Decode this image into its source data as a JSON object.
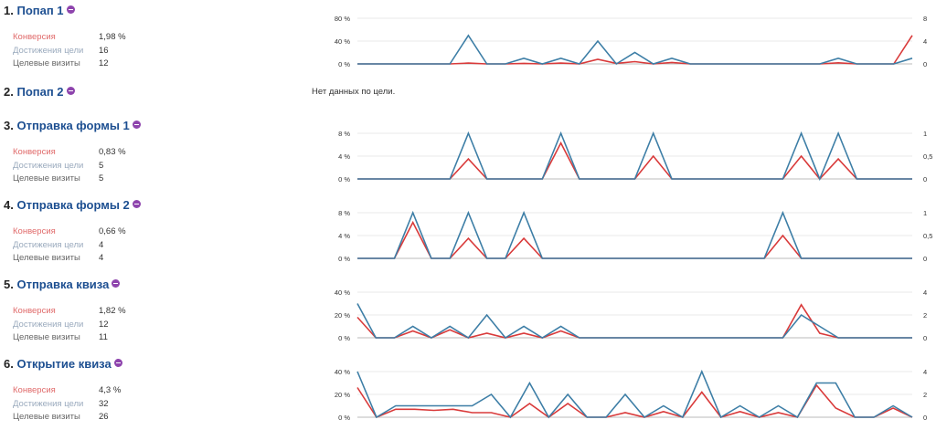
{
  "goals": [
    {
      "num": "1.",
      "name": "Попап 1",
      "badge_icon": "metrika-goal-icon",
      "stats": [
        {
          "label": "Конверсия",
          "value": "1,98 %"
        },
        {
          "label": "Достижения цели",
          "value": "16"
        },
        {
          "label": "Целевые визиты",
          "value": "12"
        }
      ],
      "nodata": null,
      "chart": {
        "left_ticks": [
          "80 %",
          "40 %",
          "0 %"
        ],
        "right_ticks": [
          "8",
          "4",
          "0"
        ],
        "conversion": [
          0,
          0,
          0,
          0,
          0,
          0,
          1.5,
          0,
          0,
          1,
          0,
          1.5,
          0,
          8,
          1,
          4,
          0,
          2.5,
          0,
          0,
          0,
          0,
          0,
          0,
          0,
          0,
          2,
          0,
          0,
          0,
          50
        ],
        "visits": [
          0,
          0,
          0,
          0,
          0,
          0,
          5,
          0,
          0,
          1,
          0,
          1,
          0,
          4,
          0,
          2,
          0,
          1,
          0,
          0,
          0,
          0,
          0,
          0,
          0,
          0,
          1,
          0,
          0,
          0,
          1
        ]
      }
    },
    {
      "num": "2.",
      "name": "Попап 2",
      "badge_icon": "metrika-goal-icon",
      "stats": [],
      "nodata": "Нет данных по цели.",
      "chart": null
    },
    {
      "num": "3.",
      "name": "Отправка формы 1",
      "badge_icon": "metrika-goal-icon",
      "stats": [
        {
          "label": "Конверсия",
          "value": "0,83 %"
        },
        {
          "label": "Достижения цели",
          "value": "5"
        },
        {
          "label": "Целевые визиты",
          "value": "5"
        }
      ],
      "nodata": null,
      "chart": {
        "left_ticks": [
          "8 %",
          "4 %",
          "0 %"
        ],
        "right_ticks": [
          "1",
          "0,5",
          "0"
        ],
        "conversion": [
          0,
          0,
          0,
          0,
          0,
          0,
          3.5,
          0,
          0,
          0,
          0,
          6.3,
          0,
          0,
          0,
          0,
          4,
          0,
          0,
          0,
          0,
          0,
          0,
          0,
          4,
          0,
          3.5,
          0,
          0,
          0,
          0
        ],
        "visits": [
          0,
          0,
          0,
          0,
          0,
          0,
          1,
          0,
          0,
          0,
          0,
          1,
          0,
          0,
          0,
          0,
          1,
          0,
          0,
          0,
          0,
          0,
          0,
          0,
          1,
          0,
          1,
          0,
          0,
          0,
          0
        ]
      }
    },
    {
      "num": "4.",
      "name": "Отправка формы 2",
      "badge_icon": "metrika-goal-icon",
      "stats": [
        {
          "label": "Конверсия",
          "value": "0,66 %"
        },
        {
          "label": "Достижения цели",
          "value": "4"
        },
        {
          "label": "Целевые визиты",
          "value": "4"
        }
      ],
      "nodata": null,
      "chart": {
        "left_ticks": [
          "8 %",
          "4 %",
          "0 %"
        ],
        "right_ticks": [
          "1",
          "0,5",
          "0"
        ],
        "conversion": [
          0,
          0,
          0,
          6.3,
          0,
          0,
          3.5,
          0,
          0,
          3.5,
          0,
          0,
          0,
          0,
          0,
          0,
          0,
          0,
          0,
          0,
          0,
          0,
          0,
          4,
          0,
          0,
          0,
          0,
          0,
          0,
          0
        ],
        "visits": [
          0,
          0,
          0,
          1,
          0,
          0,
          1,
          0,
          0,
          1,
          0,
          0,
          0,
          0,
          0,
          0,
          0,
          0,
          0,
          0,
          0,
          0,
          0,
          1,
          0,
          0,
          0,
          0,
          0,
          0,
          0
        ]
      }
    },
    {
      "num": "5.",
      "name": "Отправка квиза",
      "badge_icon": "metrika-goal-icon",
      "stats": [
        {
          "label": "Конверсия",
          "value": "1,82 %"
        },
        {
          "label": "Достижения цели",
          "value": "12"
        },
        {
          "label": "Целевые визиты",
          "value": "11"
        }
      ],
      "nodata": null,
      "chart": {
        "left_ticks": [
          "40 %",
          "20 %",
          "0 %"
        ],
        "right_ticks": [
          "4",
          "2",
          "0"
        ],
        "conversion": [
          18,
          0,
          0,
          6,
          0,
          7,
          0,
          4,
          0,
          4,
          0,
          6,
          0,
          0,
          0,
          0,
          0,
          0,
          0,
          0,
          0,
          0,
          0,
          0,
          29,
          4,
          0,
          0,
          0,
          0,
          0
        ],
        "visits": [
          3,
          0,
          0,
          1,
          0,
          1,
          0,
          2,
          0,
          1,
          0,
          1,
          0,
          0,
          0,
          0,
          0,
          0,
          0,
          0,
          0,
          0,
          0,
          0,
          2,
          1,
          0,
          0,
          0,
          0,
          0
        ]
      }
    },
    {
      "num": "6.",
      "name": "Открытие квиза",
      "badge_icon": "metrika-goal-icon",
      "stats": [
        {
          "label": "Конверсия",
          "value": "4,3 %"
        },
        {
          "label": "Достижения цели",
          "value": "32"
        },
        {
          "label": "Целевые визиты",
          "value": "26"
        }
      ],
      "nodata": null,
      "chart": {
        "left_ticks": [
          "40 %",
          "20 %",
          "0 %"
        ],
        "right_ticks": [
          "4",
          "2",
          "0"
        ],
        "conversion": [
          26,
          0,
          7,
          7,
          6,
          7,
          4,
          4,
          0,
          12,
          0,
          12,
          0,
          0,
          4,
          0,
          5,
          0,
          22,
          0,
          5,
          0,
          4,
          0,
          28,
          8,
          0,
          0,
          8,
          0
        ],
        "visits": [
          4,
          0,
          1,
          1,
          1,
          1,
          1,
          2,
          0,
          3,
          0,
          2,
          0,
          0,
          2,
          0,
          1,
          0,
          4,
          0,
          1,
          0,
          1,
          0,
          3,
          3,
          0,
          0,
          1,
          0
        ]
      }
    }
  ],
  "colors": {
    "title": "#1d4f91",
    "conversion_line": "#d93a3a",
    "visits_line": "#3d7ea6",
    "label_conversion": "#e06a6a",
    "label_reach": "#9aaabd",
    "label_visits": "#666666"
  }
}
